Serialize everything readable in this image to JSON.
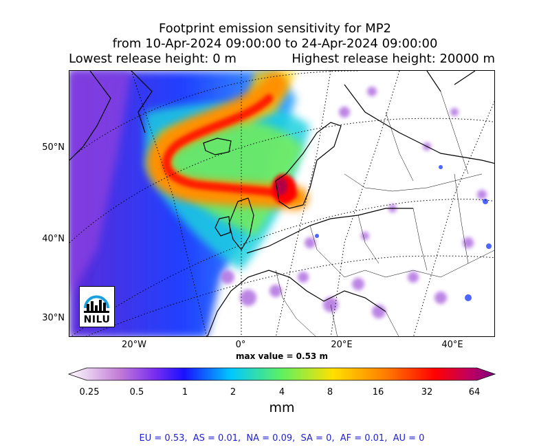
{
  "title": {
    "line1": "Footprint emission sensitivity for MP2",
    "line2": "from 10-Apr-2024 09:00:00 to 24-Apr-2024 09:00:00",
    "lowest": "Lowest release height: 0 m",
    "highest": "Highest release height: 20000 m"
  },
  "map": {
    "lat_labels": [
      "50°N",
      "40°N",
      "30°N"
    ],
    "lon_labels": [
      "20°W",
      "0°",
      "20°E",
      "40°E"
    ],
    "max_value": "max value = 0.53 m",
    "logo_text": "NILU"
  },
  "colorbar": {
    "ticks": [
      "0.25",
      "0.5",
      "1",
      "2",
      "4",
      "8",
      "16",
      "32",
      "64"
    ],
    "unit": "mm",
    "colors": [
      "#ffffff",
      "#c27bd6",
      "#7b2ff0",
      "#1a10ff",
      "#00c8ff",
      "#60f060",
      "#ffe000",
      "#ff8000",
      "#ff0000",
      "#c00060",
      "#800080"
    ]
  },
  "regions": "EU = 0.53,  AS = 0.01,  NA = 0.09,  SA = 0,  AF = 0.01,  AU = 0"
}
